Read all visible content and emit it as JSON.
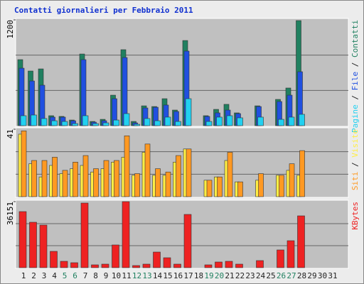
{
  "chart_data": [
    {
      "type": "bar",
      "title": "Contatti giornalieri per Febbraio 2011",
      "categories": [
        "1",
        "2",
        "3",
        "4",
        "5",
        "6",
        "7",
        "8",
        "9",
        "10",
        "11",
        "12",
        "13",
        "14",
        "15",
        "16",
        "17",
        "18",
        "19",
        "20",
        "21",
        "22",
        "23",
        "24",
        "25",
        "26",
        "27",
        "28",
        "29",
        "30",
        "31"
      ],
      "category_colors": [
        "#222222",
        "#222222",
        "#222222",
        "#222222",
        "#208060",
        "#208060",
        "#222222",
        "#222222",
        "#222222",
        "#222222",
        "#222222",
        "#208060",
        "#208060",
        "#222222",
        "#222222",
        "#222222",
        "#222222",
        "#222222",
        "#208060",
        "#208060",
        "#222222",
        "#222222",
        "#222222",
        "#222222",
        "#222222",
        "#208060",
        "#208060",
        "#222222",
        "#222222",
        "#222222",
        "#222222"
      ],
      "ylim": [
        0,
        1200
      ],
      "yticks": [
        1200
      ],
      "series": [
        {
          "name": "Contatti",
          "color": "#208060",
          "values": [
            749,
            620,
            644,
            113,
            105,
            64,
            813,
            48,
            72,
            346,
            862,
            48,
            225,
            217,
            306,
            177,
            966,
            0,
            113,
            185,
            242,
            145,
            0,
            225,
            0,
            298,
            427,
            1192,
            0,
            0,
            0
          ]
        },
        {
          "name": "File",
          "color": "#2050e0",
          "values": [
            652,
            507,
            459,
            97,
            97,
            56,
            749,
            40,
            56,
            306,
            773,
            32,
            201,
            209,
            234,
            161,
            846,
            0,
            105,
            145,
            177,
            137,
            0,
            217,
            0,
            274,
            346,
            612,
            0,
            0,
            0
          ]
        },
        {
          "name": "Pagine",
          "color": "#22d0f0",
          "values": [
            113,
            121,
            81,
            56,
            48,
            24,
            113,
            24,
            32,
            64,
            137,
            16,
            81,
            56,
            97,
            48,
            306,
            0,
            48,
            97,
            113,
            89,
            0,
            97,
            0,
            72,
            97,
            129,
            0,
            0,
            0
          ]
        }
      ]
    },
    {
      "type": "bar",
      "ylim": [
        0,
        41
      ],
      "yticks": [
        41
      ],
      "series": [
        {
          "name": "Visite",
          "color": "#ffee44",
          "values": [
            38,
            20,
            12,
            19,
            14,
            17,
            19,
            15,
            17,
            21,
            24,
            13,
            27,
            13,
            13,
            21,
            29,
            0,
            10,
            12,
            22,
            9,
            0,
            10,
            0,
            13,
            16,
            13,
            0,
            0,
            0
          ]
        },
        {
          "name": "Siti",
          "color": "#ff9922",
          "values": [
            40,
            22,
            22,
            24,
            16,
            21,
            25,
            17,
            22,
            22,
            37,
            14,
            32,
            17,
            15,
            25,
            29,
            0,
            10,
            12,
            27,
            9,
            0,
            14,
            0,
            13,
            20,
            28,
            0,
            0,
            0
          ]
        }
      ]
    },
    {
      "type": "bar",
      "ylim": [
        0,
        36151
      ],
      "yticks": [
        36151
      ],
      "series": [
        {
          "name": "KBytes",
          "color": "#ee2222",
          "values": [
            30709,
            24878,
            23323,
            8941,
            3498,
            2721,
            35374,
            1555,
            1944,
            12439,
            36151,
            1166,
            1944,
            8552,
            5442,
            1944,
            29154,
            0,
            1555,
            3110,
            3498,
            1944,
            0,
            3887,
            0,
            9718,
            14771,
            28376,
            0,
            0,
            0
          ]
        }
      ]
    }
  ]
}
